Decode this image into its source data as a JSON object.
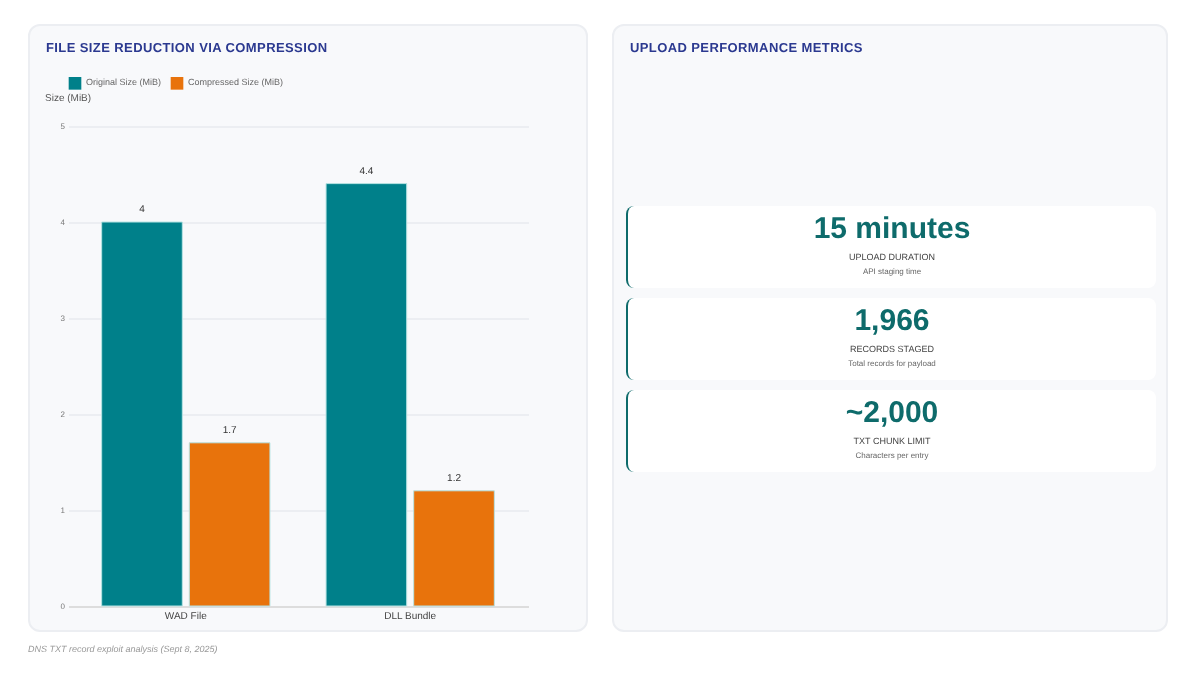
{
  "chart_data": [
    {
      "type": "bar",
      "title": "FILE SIZE REDUCTION VIA COMPRESSION",
      "ylabel": "Size (MiB)",
      "categories": [
        "WAD File",
        "DLL Bundle"
      ],
      "series": [
        {
          "name": "Original Size (MiB)",
          "color": "#00808a",
          "values": [
            4,
            4.4
          ]
        },
        {
          "name": "Compressed Size (MiB)",
          "color": "#e8730c",
          "values": [
            1.7,
            1.2
          ]
        }
      ],
      "ylim": [
        0,
        5
      ],
      "yticks": [
        0,
        1,
        2,
        3,
        4,
        5
      ],
      "grid": "y",
      "legend": "top",
      "data_labels": true,
      "annotations": [
        "DNS TXT record exploit analysis (Sept 8, 2025)"
      ]
    },
    {
      "type": "other",
      "title": "UPLOAD PERFORMANCE METRICS",
      "annotations": [
        "15 minutes",
        "UPLOAD DURATION",
        "API staging time",
        "1,966",
        "RECORDS STAGED",
        "Total records for payload",
        "~2,000",
        "TXT CHUNK LIMIT",
        "Characters per entry"
      ]
    }
  ]
}
